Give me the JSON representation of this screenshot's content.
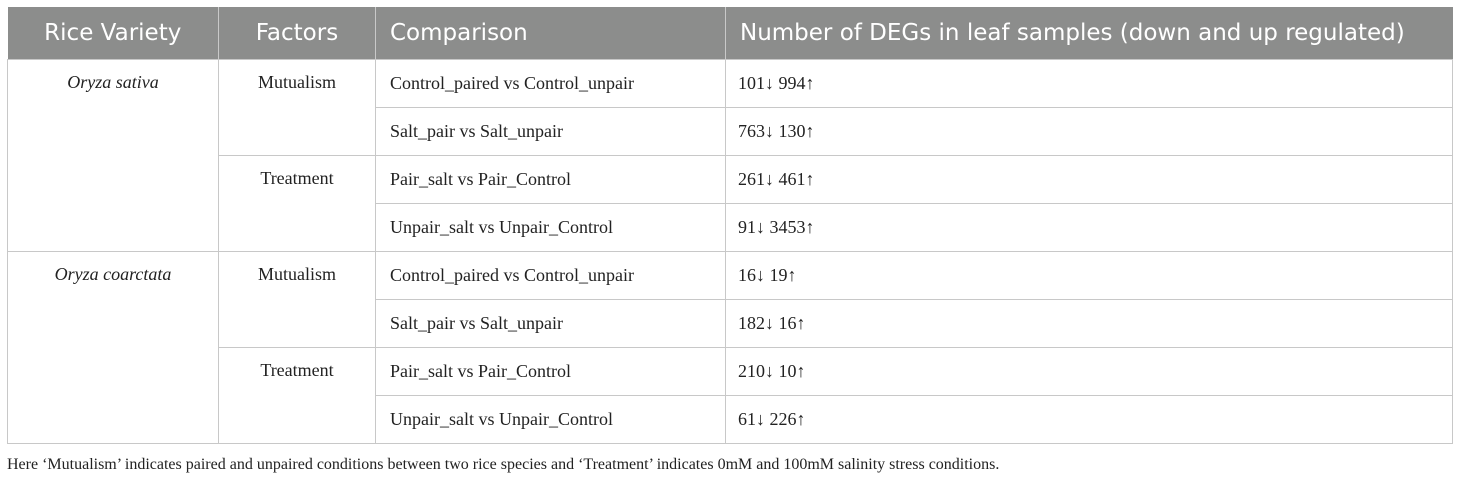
{
  "table": {
    "headers": [
      "Rice Variety",
      "Factors",
      "Comparison",
      "Number of DEGs in leaf samples (down and up regulated)"
    ],
    "groups": [
      {
        "variety": "Oryza sativa",
        "factors": [
          {
            "name": "Mutualism",
            "rows": [
              {
                "comparison": "Control_paired vs Control_unpair",
                "degs": "101↓ 994↑"
              },
              {
                "comparison": "Salt_pair vs Salt_unpair",
                "degs": "763↓ 130↑"
              }
            ]
          },
          {
            "name": "Treatment",
            "rows": [
              {
                "comparison": "Pair_salt vs Pair_Control",
                "degs": "261↓ 461↑"
              },
              {
                "comparison": "Unpair_salt vs Unpair_Control",
                "degs": "91↓ 3453↑"
              }
            ]
          }
        ]
      },
      {
        "variety": "Oryza coarctata",
        "factors": [
          {
            "name": "Mutualism",
            "rows": [
              {
                "comparison": "Control_paired vs Control_unpair",
                "degs": "16↓ 19↑"
              },
              {
                "comparison": "Salt_pair vs Salt_unpair",
                "degs": "182↓ 16↑"
              }
            ]
          },
          {
            "name": "Treatment",
            "rows": [
              {
                "comparison": "Pair_salt vs Pair_Control",
                "degs": "210↓ 10↑"
              },
              {
                "comparison": "Unpair_salt vs Unpair_Control",
                "degs": "61↓ 226↑"
              }
            ]
          }
        ]
      }
    ]
  },
  "footnote": "Here ‘Mutualism’ indicates paired and unpaired conditions between two rice species and ‘Treatment’ indicates 0mM and 100mM salinity stress conditions.",
  "colors": {
    "header_bg": "#8c8d8c",
    "header_text": "#ffffff",
    "grid": "#c8c8c8"
  }
}
